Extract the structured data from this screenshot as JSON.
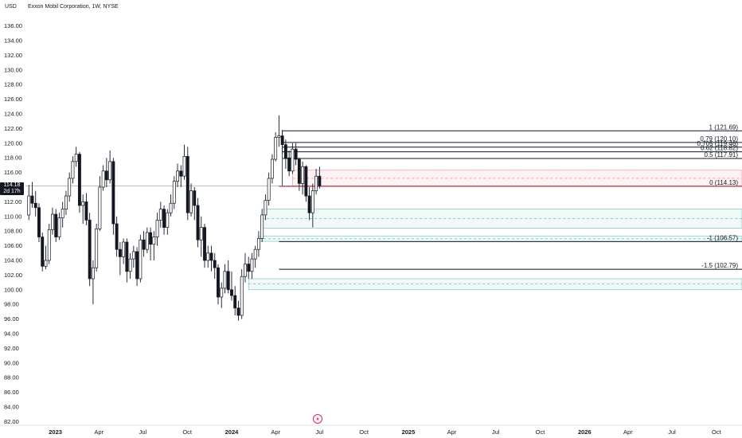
{
  "header": {
    "currency": "USD",
    "title": "Exxon Mobil Corporation, 1W, NYSE"
  },
  "last_price": {
    "value": "114.18",
    "countdown": "2d 17h"
  },
  "chart_data": {
    "type": "candlestick",
    "title": "Exxon Mobil Corporation, 1W, NYSE",
    "ylim": [
      81,
      137.5
    ],
    "y_ticks": [
      "136.00",
      "134.00",
      "132.00",
      "130.00",
      "128.00",
      "126.00",
      "124.00",
      "122.00",
      "120.00",
      "118.00",
      "116.00",
      "114.00",
      "112.00",
      "110.00",
      "108.00",
      "106.00",
      "104.00",
      "102.00",
      "100.00",
      "98.00",
      "96.00",
      "94.00",
      "92.00",
      "90.00",
      "88.00",
      "86.00",
      "84.00",
      "82.00"
    ],
    "x_ticks": [
      {
        "label": "2023",
        "date": "2023-01-01",
        "bold": true
      },
      {
        "label": "Apr",
        "date": "2023-04-01",
        "bold": false
      },
      {
        "label": "Jul",
        "date": "2023-07-01",
        "bold": false
      },
      {
        "label": "Oct",
        "date": "2023-10-01",
        "bold": false
      },
      {
        "label": "2024",
        "date": "2024-01-01",
        "bold": true
      },
      {
        "label": "Apr",
        "date": "2024-04-01",
        "bold": false
      },
      {
        "label": "Jul",
        "date": "2024-07-01",
        "bold": false
      },
      {
        "label": "Oct",
        "date": "2024-10-01",
        "bold": false
      },
      {
        "label": "2025",
        "date": "2025-01-01",
        "bold": true
      },
      {
        "label": "Apr",
        "date": "2025-04-01",
        "bold": false
      },
      {
        "label": "Jul",
        "date": "2025-07-01",
        "bold": false
      },
      {
        "label": "Oct",
        "date": "2025-10-01",
        "bold": false
      },
      {
        "label": "2026",
        "date": "2026-01-01",
        "bold": true
      },
      {
        "label": "Apr",
        "date": "2026-04-01",
        "bold": false
      },
      {
        "label": "Jul",
        "date": "2026-07-01",
        "bold": false
      },
      {
        "label": "Oct",
        "date": "2026-10-01",
        "bold": false
      }
    ],
    "x_range": [
      "2022-10-31",
      "2026-11-23"
    ],
    "candles": [
      {
        "date": "2022-11-07",
        "o": 110.2,
        "h": 114.3,
        "l": 109.5,
        "c": 112.8
      },
      {
        "date": "2022-11-14",
        "o": 112.8,
        "h": 114.7,
        "l": 111.2,
        "c": 111.8
      },
      {
        "date": "2022-11-21",
        "o": 111.8,
        "h": 113.5,
        "l": 110.0,
        "c": 111.2
      },
      {
        "date": "2022-11-28",
        "o": 111.2,
        "h": 111.8,
        "l": 106.5,
        "c": 107.2
      },
      {
        "date": "2022-12-05",
        "o": 107.2,
        "h": 107.8,
        "l": 102.5,
        "c": 103.2
      },
      {
        "date": "2022-12-12",
        "o": 103.2,
        "h": 106.0,
        "l": 102.8,
        "c": 104.0
      },
      {
        "date": "2022-12-19",
        "o": 104.0,
        "h": 109.0,
        "l": 103.5,
        "c": 108.2
      },
      {
        "date": "2022-12-26",
        "o": 108.2,
        "h": 111.2,
        "l": 107.5,
        "c": 110.3
      },
      {
        "date": "2023-01-02",
        "o": 110.3,
        "h": 111.0,
        "l": 106.5,
        "c": 107.2
      },
      {
        "date": "2023-01-09",
        "o": 107.2,
        "h": 110.5,
        "l": 106.8,
        "c": 109.8
      },
      {
        "date": "2023-01-16",
        "o": 109.8,
        "h": 112.0,
        "l": 108.5,
        "c": 111.0
      },
      {
        "date": "2023-01-23",
        "o": 111.0,
        "h": 113.5,
        "l": 110.2,
        "c": 112.8
      },
      {
        "date": "2023-01-30",
        "o": 112.8,
        "h": 116.0,
        "l": 112.0,
        "c": 115.2
      },
      {
        "date": "2023-02-06",
        "o": 115.2,
        "h": 118.2,
        "l": 114.5,
        "c": 117.5
      },
      {
        "date": "2023-02-13",
        "o": 117.5,
        "h": 119.5,
        "l": 116.8,
        "c": 118.5
      },
      {
        "date": "2023-02-20",
        "o": 118.5,
        "h": 118.8,
        "l": 110.5,
        "c": 111.5
      },
      {
        "date": "2023-02-27",
        "o": 111.5,
        "h": 113.0,
        "l": 109.0,
        "c": 112.0
      },
      {
        "date": "2023-03-06",
        "o": 112.0,
        "h": 113.2,
        "l": 108.8,
        "c": 109.5
      },
      {
        "date": "2023-03-13",
        "o": 109.5,
        "h": 110.5,
        "l": 100.5,
        "c": 101.5
      },
      {
        "date": "2023-03-20",
        "o": 101.5,
        "h": 104.0,
        "l": 98.0,
        "c": 103.0
      },
      {
        "date": "2023-03-27",
        "o": 103.0,
        "h": 109.0,
        "l": 102.5,
        "c": 108.3
      },
      {
        "date": "2023-04-03",
        "o": 108.3,
        "h": 115.5,
        "l": 108.0,
        "c": 114.0
      },
      {
        "date": "2023-04-10",
        "o": 114.0,
        "h": 117.0,
        "l": 113.5,
        "c": 116.2
      },
      {
        "date": "2023-04-17",
        "o": 116.2,
        "h": 118.0,
        "l": 114.0,
        "c": 115.0
      },
      {
        "date": "2023-04-24",
        "o": 115.0,
        "h": 119.0,
        "l": 114.5,
        "c": 117.5
      },
      {
        "date": "2023-05-01",
        "o": 117.5,
        "h": 118.0,
        "l": 107.5,
        "c": 109.0
      },
      {
        "date": "2023-05-08",
        "o": 109.0,
        "h": 110.0,
        "l": 104.5,
        "c": 105.5
      },
      {
        "date": "2023-05-15",
        "o": 105.5,
        "h": 106.5,
        "l": 102.0,
        "c": 104.5
      },
      {
        "date": "2023-05-22",
        "o": 104.5,
        "h": 107.0,
        "l": 103.5,
        "c": 106.5
      },
      {
        "date": "2023-05-29",
        "o": 106.5,
        "h": 107.0,
        "l": 101.0,
        "c": 102.5
      },
      {
        "date": "2023-06-05",
        "o": 102.5,
        "h": 105.0,
        "l": 101.5,
        "c": 104.2
      },
      {
        "date": "2023-06-12",
        "o": 104.2,
        "h": 106.0,
        "l": 103.0,
        "c": 105.2
      },
      {
        "date": "2023-06-19",
        "o": 105.2,
        "h": 105.8,
        "l": 100.5,
        "c": 101.5
      },
      {
        "date": "2023-06-26",
        "o": 101.5,
        "h": 107.5,
        "l": 101.0,
        "c": 106.8
      },
      {
        "date": "2023-07-03",
        "o": 106.8,
        "h": 108.0,
        "l": 104.5,
        "c": 105.5
      },
      {
        "date": "2023-07-10",
        "o": 105.5,
        "h": 108.5,
        "l": 105.0,
        "c": 107.8
      },
      {
        "date": "2023-07-17",
        "o": 107.8,
        "h": 108.5,
        "l": 104.0,
        "c": 106.2
      },
      {
        "date": "2023-07-24",
        "o": 106.2,
        "h": 108.0,
        "l": 104.0,
        "c": 107.2
      },
      {
        "date": "2023-07-31",
        "o": 107.2,
        "h": 110.5,
        "l": 106.0,
        "c": 109.5
      },
      {
        "date": "2023-08-07",
        "o": 109.5,
        "h": 112.0,
        "l": 108.5,
        "c": 111.0
      },
      {
        "date": "2023-08-14",
        "o": 111.0,
        "h": 111.5,
        "l": 107.5,
        "c": 108.5
      },
      {
        "date": "2023-08-21",
        "o": 108.5,
        "h": 111.0,
        "l": 107.5,
        "c": 110.5
      },
      {
        "date": "2023-08-28",
        "o": 110.5,
        "h": 113.0,
        "l": 110.0,
        "c": 111.8
      },
      {
        "date": "2023-09-04",
        "o": 111.8,
        "h": 115.5,
        "l": 111.0,
        "c": 114.8
      },
      {
        "date": "2023-09-11",
        "o": 114.8,
        "h": 117.2,
        "l": 114.0,
        "c": 116.2
      },
      {
        "date": "2023-09-18",
        "o": 116.2,
        "h": 117.0,
        "l": 114.0,
        "c": 115.5
      },
      {
        "date": "2023-09-25",
        "o": 115.5,
        "h": 119.8,
        "l": 115.0,
        "c": 118.2
      },
      {
        "date": "2023-10-02",
        "o": 118.2,
        "h": 119.5,
        "l": 109.5,
        "c": 110.5
      },
      {
        "date": "2023-10-09",
        "o": 110.5,
        "h": 114.5,
        "l": 110.0,
        "c": 113.5
      },
      {
        "date": "2023-10-16",
        "o": 113.5,
        "h": 114.0,
        "l": 109.5,
        "c": 111.5
      },
      {
        "date": "2023-10-23",
        "o": 111.5,
        "h": 112.5,
        "l": 105.8,
        "c": 106.8
      },
      {
        "date": "2023-10-30",
        "o": 106.8,
        "h": 110.0,
        "l": 104.5,
        "c": 108.5
      },
      {
        "date": "2023-11-06",
        "o": 108.5,
        "h": 109.0,
        "l": 103.0,
        "c": 104.0
      },
      {
        "date": "2023-11-13",
        "o": 104.0,
        "h": 106.0,
        "l": 103.0,
        "c": 105.0
      },
      {
        "date": "2023-11-20",
        "o": 105.0,
        "h": 106.0,
        "l": 102.5,
        "c": 104.0
      },
      {
        "date": "2023-11-27",
        "o": 104.0,
        "h": 105.0,
        "l": 101.5,
        "c": 103.0
      },
      {
        "date": "2023-12-04",
        "o": 103.0,
        "h": 103.5,
        "l": 98.0,
        "c": 99.0
      },
      {
        "date": "2023-12-11",
        "o": 99.0,
        "h": 101.0,
        "l": 97.5,
        "c": 100.2
      },
      {
        "date": "2023-12-18",
        "o": 100.2,
        "h": 103.5,
        "l": 99.5,
        "c": 102.5
      },
      {
        "date": "2023-12-25",
        "o": 102.5,
        "h": 104.0,
        "l": 99.5,
        "c": 100.0
      },
      {
        "date": "2024-01-01",
        "o": 100.0,
        "h": 102.5,
        "l": 98.5,
        "c": 99.2
      },
      {
        "date": "2024-01-08",
        "o": 99.2,
        "h": 100.5,
        "l": 96.5,
        "c": 97.5
      },
      {
        "date": "2024-01-15",
        "o": 97.5,
        "h": 98.5,
        "l": 95.8,
        "c": 96.5
      },
      {
        "date": "2024-01-22",
        "o": 96.5,
        "h": 102.8,
        "l": 96.0,
        "c": 101.8
      },
      {
        "date": "2024-01-29",
        "o": 101.8,
        "h": 105.0,
        "l": 101.0,
        "c": 103.5
      },
      {
        "date": "2024-02-05",
        "o": 103.5,
        "h": 104.5,
        "l": 101.5,
        "c": 102.5
      },
      {
        "date": "2024-02-12",
        "o": 102.5,
        "h": 105.0,
        "l": 101.5,
        "c": 104.2
      },
      {
        "date": "2024-02-19",
        "o": 104.2,
        "h": 106.0,
        "l": 103.0,
        "c": 105.5
      },
      {
        "date": "2024-02-26",
        "o": 105.5,
        "h": 108.0,
        "l": 104.5,
        "c": 107.0
      },
      {
        "date": "2024-03-04",
        "o": 107.0,
        "h": 111.0,
        "l": 106.5,
        "c": 110.2
      },
      {
        "date": "2024-03-11",
        "o": 110.2,
        "h": 113.0,
        "l": 109.5,
        "c": 112.2
      },
      {
        "date": "2024-03-18",
        "o": 112.2,
        "h": 116.0,
        "l": 111.5,
        "c": 115.2
      },
      {
        "date": "2024-03-25",
        "o": 115.2,
        "h": 118.5,
        "l": 114.5,
        "c": 117.8
      },
      {
        "date": "2024-04-01",
        "o": 117.8,
        "h": 121.5,
        "l": 117.5,
        "c": 120.8
      },
      {
        "date": "2024-04-08",
        "o": 120.8,
        "h": 123.8,
        "l": 119.5,
        "c": 121.0
      },
      {
        "date": "2024-04-15",
        "o": 121.0,
        "h": 121.8,
        "l": 118.5,
        "c": 119.8
      },
      {
        "date": "2024-04-22",
        "o": 119.8,
        "h": 120.5,
        "l": 116.5,
        "c": 118.0
      },
      {
        "date": "2024-04-29",
        "o": 118.0,
        "h": 119.0,
        "l": 115.5,
        "c": 116.2
      },
      {
        "date": "2024-05-06",
        "o": 116.2,
        "h": 120.0,
        "l": 115.8,
        "c": 119.2
      },
      {
        "date": "2024-05-13",
        "o": 119.2,
        "h": 120.0,
        "l": 117.0,
        "c": 117.8
      },
      {
        "date": "2024-05-20",
        "o": 117.8,
        "h": 118.0,
        "l": 113.5,
        "c": 114.5
      },
      {
        "date": "2024-05-27",
        "o": 114.5,
        "h": 117.5,
        "l": 113.0,
        "c": 116.8
      },
      {
        "date": "2024-06-03",
        "o": 116.8,
        "h": 117.0,
        "l": 112.0,
        "c": 112.8
      },
      {
        "date": "2024-06-10",
        "o": 112.8,
        "h": 114.0,
        "l": 109.5,
        "c": 110.5
      },
      {
        "date": "2024-06-17",
        "o": 110.5,
        "h": 114.5,
        "l": 108.5,
        "c": 113.5
      },
      {
        "date": "2024-06-24",
        "o": 113.5,
        "h": 116.5,
        "l": 113.0,
        "c": 115.5
      },
      {
        "date": "2024-07-01",
        "o": 115.5,
        "h": 116.8,
        "l": 113.8,
        "c": 114.18
      }
    ],
    "fib_levels": [
      {
        "label": "1 (121.69)",
        "value": 121.69,
        "from": "2024-04-15"
      },
      {
        "label": "0.79 (120.10)",
        "value": 120.1,
        "from": "2024-04-15"
      },
      {
        "label": "0.705 (119.46)",
        "value": 119.46,
        "from": "2024-04-15"
      },
      {
        "label": "0.62 (118.82)",
        "value": 118.82,
        "from": "2024-04-15"
      },
      {
        "label": "0.5 (117.91)",
        "value": 117.91,
        "from": "2024-04-15"
      },
      {
        "label": "0 (114.13)",
        "value": 114.13,
        "from": "2024-04-08"
      },
      {
        "label": "-1 (106.57)",
        "value": 106.57,
        "from": "2024-04-08"
      },
      {
        "label": "-1.5 (102.79)",
        "value": 102.79,
        "from": "2024-04-08"
      }
    ],
    "zones": [
      {
        "type": "supply",
        "top": 116.3,
        "bottom": 114.2,
        "mid": 115.2,
        "from": "2024-05-06",
        "color": "#f23645"
      },
      {
        "type": "demand",
        "top": 111.0,
        "bottom": 108.4,
        "mid": 109.7,
        "from": "2024-03-04",
        "color": "#089981"
      },
      {
        "type": "demand",
        "top": 107.3,
        "bottom": 106.6,
        "mid": 106.95,
        "from": "2024-02-26",
        "color": "#089981"
      },
      {
        "type": "demand",
        "top": 101.5,
        "bottom": 100.0,
        "mid": 100.8,
        "from": "2024-02-05",
        "color": "#089981"
      }
    ],
    "last_price_line": 114.18,
    "colors": {
      "up_fill": "#ffffff",
      "up_stroke": "#131722",
      "down_fill": "#131722",
      "down_stroke": "#131722",
      "fib_line": "#131722",
      "zero_line": "#b22833",
      "grid": "#f0f3fa",
      "axis_text": "#131722"
    }
  }
}
